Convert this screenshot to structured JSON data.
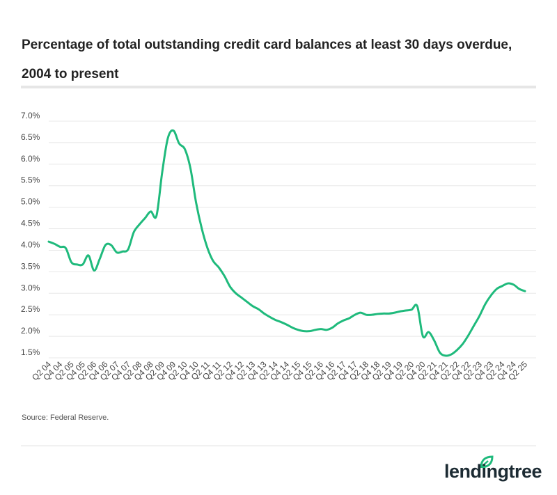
{
  "chart_data": {
    "type": "line",
    "title": "Percentage of total outstanding credit card balances at least 30 days overdue, 2004 to present",
    "xlabel": "",
    "ylabel": "",
    "ylim": [
      1.5,
      7.0
    ],
    "yticks": [
      "1.5%",
      "2.0%",
      "2.5%",
      "3.0%",
      "3.5%",
      "4.0%",
      "4.5%",
      "5.0%",
      "5.5%",
      "6.0%",
      "6.5%",
      "7.0%"
    ],
    "xtick_labels": [
      "Q2 04",
      "Q4 04",
      "Q2 05",
      "Q4 05",
      "Q2 06",
      "Q4 06",
      "Q2 07",
      "Q4 07",
      "Q2 08",
      "Q4 08",
      "Q2 09",
      "Q4 09",
      "Q2 10",
      "Q4 10",
      "Q2 11",
      "Q4 11",
      "Q2 12",
      "Q4 12",
      "Q2 13",
      "Q4 13",
      "Q2 14",
      "Q4 14",
      "Q2 15",
      "Q4 15",
      "Q2 16",
      "Q4 16",
      "Q2 17",
      "Q4 17",
      "Q2 18",
      "Q4 18",
      "Q2 19",
      "Q4 19",
      "Q2 20",
      "Q4 20",
      "Q2 21",
      "Q4 21",
      "Q2 22",
      "Q4 22",
      "Q2 23",
      "Q4 23",
      "Q2 24",
      "Q4 24",
      "Q2 25"
    ],
    "grid": true,
    "color": "#1fba7c",
    "series": [
      {
        "values": [
          4.2,
          4.15,
          4.08,
          4.05,
          3.72,
          3.67,
          3.67,
          3.88,
          3.53,
          3.8,
          4.12,
          4.12,
          3.95,
          3.97,
          4.02,
          4.42,
          4.6,
          4.75,
          4.9,
          4.8,
          5.8,
          6.6,
          6.78,
          6.48,
          6.35,
          5.9,
          5.1,
          4.5,
          4.05,
          3.75,
          3.6,
          3.4,
          3.15,
          3.0,
          2.9,
          2.8,
          2.7,
          2.63,
          2.53,
          2.45,
          2.38,
          2.33,
          2.27,
          2.2,
          2.15,
          2.12,
          2.12,
          2.15,
          2.17,
          2.15,
          2.2,
          2.3,
          2.37,
          2.42,
          2.5,
          2.55,
          2.5,
          2.5,
          2.52,
          2.53,
          2.53,
          2.55,
          2.58,
          2.6,
          2.62,
          2.7,
          2.0,
          2.1,
          1.9,
          1.62,
          1.55,
          1.58,
          1.68,
          1.82,
          2.02,
          2.25,
          2.48,
          2.75,
          2.95,
          3.1,
          3.17,
          3.23,
          3.2,
          3.1,
          3.05
        ]
      }
    ]
  },
  "source": "Source: Federal Reserve.",
  "logo": {
    "text": "lendingtree",
    "color": "#1c2b33",
    "leaf_color": "#1fba7c"
  }
}
